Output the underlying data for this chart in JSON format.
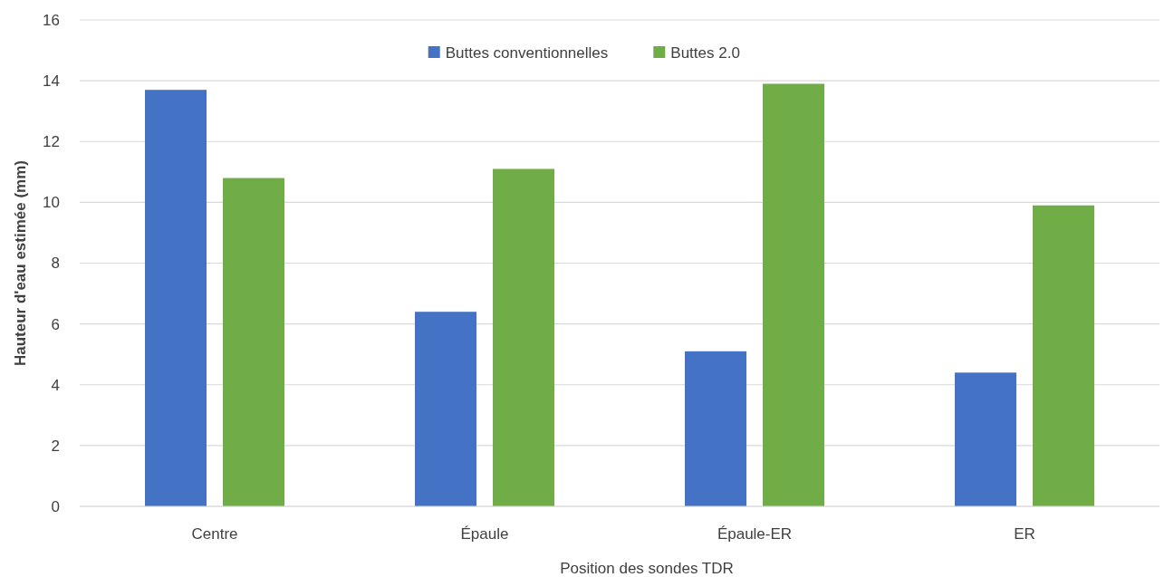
{
  "chart_data": {
    "type": "bar",
    "xlabel": "Position des sondes TDR",
    "ylabel": "Hauteur d'eau estimée (mm)",
    "categories": [
      "Centre",
      "Épaule",
      "Épaule-ER",
      "ER"
    ],
    "series": [
      {
        "name": "Buttes conventionnelles",
        "color": "#4472c4",
        "values": [
          13.7,
          6.4,
          5.1,
          4.4
        ]
      },
      {
        "name": "Buttes 2.0",
        "color": "#70ad47",
        "values": [
          10.8,
          11.1,
          13.9,
          9.9
        ]
      }
    ],
    "ylim": [
      0,
      16
    ],
    "yticks": [
      0,
      2,
      4,
      6,
      8,
      10,
      12,
      14,
      16
    ],
    "grid": "y",
    "legend": "top"
  }
}
